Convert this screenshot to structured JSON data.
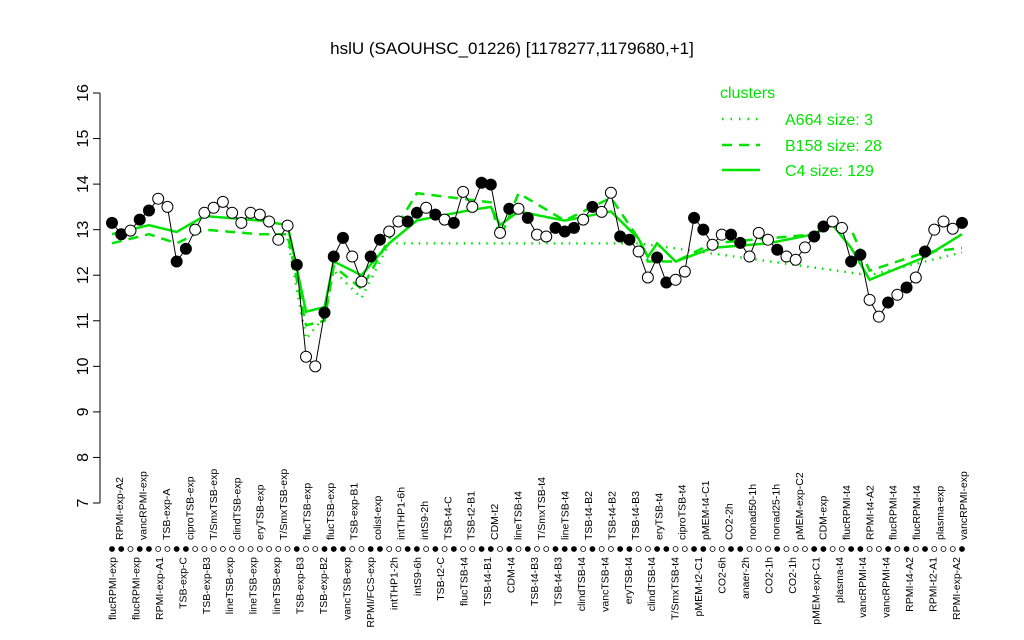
{
  "chart_data": {
    "type": "line",
    "title": "hslU (SAOUHSC_01226) [1178277,1179680,+1]",
    "xlabel": "",
    "ylabel": "",
    "ylim": [
      7,
      16
    ],
    "yticks": [
      "7",
      "8",
      "9",
      "10",
      "11",
      "12",
      "13",
      "14",
      "15",
      "16"
    ],
    "grid": false,
    "legend": {
      "title": "clusters",
      "placement": "top-right",
      "entries": [
        {
          "label": "A664 size: 3",
          "style": "dotted"
        },
        {
          "label": "B158 size: 28",
          "style": "dashed"
        },
        {
          "label": "C4 size: 129",
          "style": "solid"
        }
      ]
    },
    "colors": {
      "cluster": "#00e400",
      "points": "#000000"
    },
    "points": [
      {
        "v": 13.15,
        "f": 1
      },
      {
        "v": 12.9,
        "f": 1
      },
      {
        "v": 12.98,
        "f": 0
      },
      {
        "v": 13.22,
        "f": 1
      },
      {
        "v": 13.42,
        "f": 1
      },
      {
        "v": 13.68,
        "f": 0
      },
      {
        "v": 13.5,
        "f": 0
      },
      {
        "v": 12.3,
        "f": 1
      },
      {
        "v": 12.58,
        "f": 1
      },
      {
        "v": 13.0,
        "f": 0
      },
      {
        "v": 13.37,
        "f": 0
      },
      {
        "v": 13.48,
        "f": 0
      },
      {
        "v": 13.61,
        "f": 0
      },
      {
        "v": 13.37,
        "f": 0
      },
      {
        "v": 13.15,
        "f": 0
      },
      {
        "v": 13.37,
        "f": 0
      },
      {
        "v": 13.33,
        "f": 0
      },
      {
        "v": 13.18,
        "f": 0
      },
      {
        "v": 12.78,
        "f": 0
      },
      {
        "v": 13.09,
        "f": 0
      },
      {
        "v": 12.23,
        "f": 1
      },
      {
        "v": 10.21,
        "f": 0
      },
      {
        "v": 10.0,
        "f": 0
      },
      {
        "v": 11.18,
        "f": 1
      },
      {
        "v": 12.41,
        "f": 1
      },
      {
        "v": 12.82,
        "f": 1
      },
      {
        "v": 12.41,
        "f": 0
      },
      {
        "v": 11.86,
        "f": 0
      },
      {
        "v": 12.41,
        "f": 1
      },
      {
        "v": 12.78,
        "f": 1
      },
      {
        "v": 12.96,
        "f": 0
      },
      {
        "v": 13.18,
        "f": 0
      },
      {
        "v": 13.18,
        "f": 1
      },
      {
        "v": 13.37,
        "f": 1
      },
      {
        "v": 13.48,
        "f": 0
      },
      {
        "v": 13.33,
        "f": 1
      },
      {
        "v": 13.22,
        "f": 0
      },
      {
        "v": 13.15,
        "f": 1
      },
      {
        "v": 13.83,
        "f": 0
      },
      {
        "v": 13.5,
        "f": 0
      },
      {
        "v": 14.03,
        "f": 1
      },
      {
        "v": 13.99,
        "f": 1
      },
      {
        "v": 12.93,
        "f": 0
      },
      {
        "v": 13.46,
        "f": 1
      },
      {
        "v": 13.46,
        "f": 0
      },
      {
        "v": 13.26,
        "f": 1
      },
      {
        "v": 12.89,
        "f": 0
      },
      {
        "v": 12.85,
        "f": 0
      },
      {
        "v": 13.04,
        "f": 1
      },
      {
        "v": 12.96,
        "f": 1
      },
      {
        "v": 13.04,
        "f": 1
      },
      {
        "v": 13.22,
        "f": 0
      },
      {
        "v": 13.5,
        "f": 1
      },
      {
        "v": 13.39,
        "f": 0
      },
      {
        "v": 13.81,
        "f": 0
      },
      {
        "v": 12.85,
        "f": 1
      },
      {
        "v": 12.78,
        "f": 1
      },
      {
        "v": 12.52,
        "f": 0
      },
      {
        "v": 11.95,
        "f": 0
      },
      {
        "v": 12.39,
        "f": 1
      },
      {
        "v": 11.84,
        "f": 1
      },
      {
        "v": 11.9,
        "f": 0
      },
      {
        "v": 12.08,
        "f": 0
      },
      {
        "v": 13.26,
        "f": 1
      },
      {
        "v": 13.0,
        "f": 1
      },
      {
        "v": 12.67,
        "f": 0
      },
      {
        "v": 12.89,
        "f": 0
      },
      {
        "v": 12.89,
        "f": 1
      },
      {
        "v": 12.71,
        "f": 1
      },
      {
        "v": 12.41,
        "f": 0
      },
      {
        "v": 12.93,
        "f": 0
      },
      {
        "v": 12.78,
        "f": 0
      },
      {
        "v": 12.56,
        "f": 1
      },
      {
        "v": 12.41,
        "f": 0
      },
      {
        "v": 12.34,
        "f": 0
      },
      {
        "v": 12.61,
        "f": 0
      },
      {
        "v": 12.85,
        "f": 1
      },
      {
        "v": 13.07,
        "f": 1
      },
      {
        "v": 13.18,
        "f": 0
      },
      {
        "v": 13.04,
        "f": 0
      },
      {
        "v": 12.3,
        "f": 1
      },
      {
        "v": 12.45,
        "f": 1
      },
      {
        "v": 11.46,
        "f": 0
      },
      {
        "v": 11.09,
        "f": 0
      },
      {
        "v": 11.4,
        "f": 1
      },
      {
        "v": 11.57,
        "f": 0
      },
      {
        "v": 11.73,
        "f": 1
      },
      {
        "v": 11.95,
        "f": 0
      },
      {
        "v": 12.52,
        "f": 1
      },
      {
        "v": 13.0,
        "f": 0
      },
      {
        "v": 13.18,
        "f": 0
      },
      {
        "v": 13.02,
        "f": 0
      },
      {
        "v": 13.15,
        "f": 1
      }
    ],
    "cluster_lines": {
      "C4": [
        [
          1,
          12.9
        ],
        [
          5,
          13.1
        ],
        [
          8,
          12.95
        ],
        [
          11,
          13.3
        ],
        [
          17,
          13.2
        ],
        [
          20,
          13.1
        ],
        [
          22,
          11.2
        ],
        [
          24,
          11.3
        ],
        [
          25,
          12.3
        ],
        [
          28,
          12.0
        ],
        [
          31,
          12.7
        ],
        [
          34,
          13.2
        ],
        [
          39,
          13.4
        ],
        [
          42,
          13.5
        ],
        [
          43,
          13.1
        ],
        [
          45,
          13.4
        ],
        [
          50,
          13.2
        ],
        [
          55,
          13.4
        ],
        [
          58,
          12.8
        ],
        [
          59,
          12.4
        ],
        [
          60,
          12.7
        ],
        [
          62,
          12.3
        ],
        [
          66,
          12.6
        ],
        [
          72,
          12.7
        ],
        [
          77,
          12.9
        ],
        [
          79,
          13.1
        ],
        [
          81,
          12.6
        ],
        [
          83,
          11.9
        ],
        [
          89,
          12.4
        ],
        [
          93,
          12.9
        ]
      ],
      "B158": [
        [
          1,
          12.7
        ],
        [
          5,
          12.9
        ],
        [
          8,
          12.7
        ],
        [
          11,
          13.0
        ],
        [
          17,
          12.9
        ],
        [
          20,
          12.9
        ],
        [
          22,
          10.9
        ],
        [
          24,
          11.0
        ],
        [
          25,
          12.2
        ],
        [
          28,
          11.7
        ],
        [
          31,
          12.8
        ],
        [
          34,
          13.8
        ],
        [
          38,
          13.7
        ],
        [
          42,
          13.6
        ],
        [
          43,
          12.8
        ],
        [
          45,
          13.8
        ],
        [
          50,
          13.2
        ],
        [
          55,
          13.7
        ],
        [
          58,
          12.8
        ],
        [
          59,
          12.3
        ],
        [
          62,
          12.3
        ],
        [
          66,
          12.7
        ],
        [
          77,
          12.9
        ],
        [
          79,
          13.2
        ],
        [
          81,
          13.0
        ],
        [
          83,
          12.1
        ],
        [
          89,
          12.5
        ],
        [
          93,
          12.6
        ]
      ],
      "A664": [
        [
          20,
          12.8
        ],
        [
          22,
          10.6
        ],
        [
          24,
          11.1
        ],
        [
          25,
          12.1
        ],
        [
          28,
          11.5
        ],
        [
          31,
          12.7
        ],
        [
          58,
          12.7
        ],
        [
          83,
          12.0
        ],
        [
          93,
          12.5
        ]
      ]
    },
    "top_labels": [
      "RPMI-exp-A2",
      "vancRPMI-exp",
      "TSB-exp-A",
      "ciproTSB-exp",
      "T/SmxTSB-exp",
      "clindTSB-exp",
      "eryTSB-exp",
      "T/SmxTSB-exp",
      "flucTSB-exp",
      "flucTSB-exp",
      "TSB-exp-B1",
      "colist-exp",
      "intTHP1-6h",
      "intS9-2h",
      "TSB-t4-C",
      "TSB-t2-B1",
      "CDM-t2",
      "lineTSB-t4",
      "T/SmxTSB-t4",
      "lineTSB-t4",
      "TSB-t4-B2",
      "TSB-t4-B2",
      "TSB-t4-B3",
      "eryTSB-t4",
      "ciproTSB-t4",
      "pMEM-t4-C1",
      "CO2-2h",
      "nonad50-1h",
      "nonad25-1h",
      "pMEM-exp-C2",
      "CDM-exp",
      "flucRPMI-t4",
      "RPMI-t4-A2",
      "flucRPMI-t4",
      "flucRPMI-t4",
      "plasma-exp",
      "vancRPMI-exp"
    ],
    "bottom_labels": [
      "flucRPMI-exp",
      "flucRPMI-exp",
      "RPMI-exp-A1",
      "TSB-exp-C",
      "TSB-exp-B3",
      "lineTSB-exp",
      "lineTSB-exp",
      "lineTSB-exp",
      "TSB-exp-B3",
      "TSB-exp-B2",
      "vancTSB-exp",
      "RPMI/FCS-exp",
      "intTHP1-2h",
      "intS9-6h",
      "TSB-t2-C",
      "flucTSB-t4",
      "TSB-t4-B1",
      "CDM-t4",
      "TSB-t4-B3",
      "TSB-t4-B3",
      "clindTSB-t4",
      "vancTSB-t4",
      "eryTSB-t4",
      "clindTSB-t4",
      "T/SmxTSB-t4",
      "pMEM-t2-C1",
      "CO2-6h",
      "anaer-2h",
      "CO2-1h",
      "CO2-1h",
      "pMEM-exp-C1",
      "plasma-t4",
      "vancRPMI-t4",
      "vancRPMI-t4",
      "RPMI-t4-A2",
      "RPMI-t2-A1",
      "RPMI-exp-A2"
    ]
  }
}
